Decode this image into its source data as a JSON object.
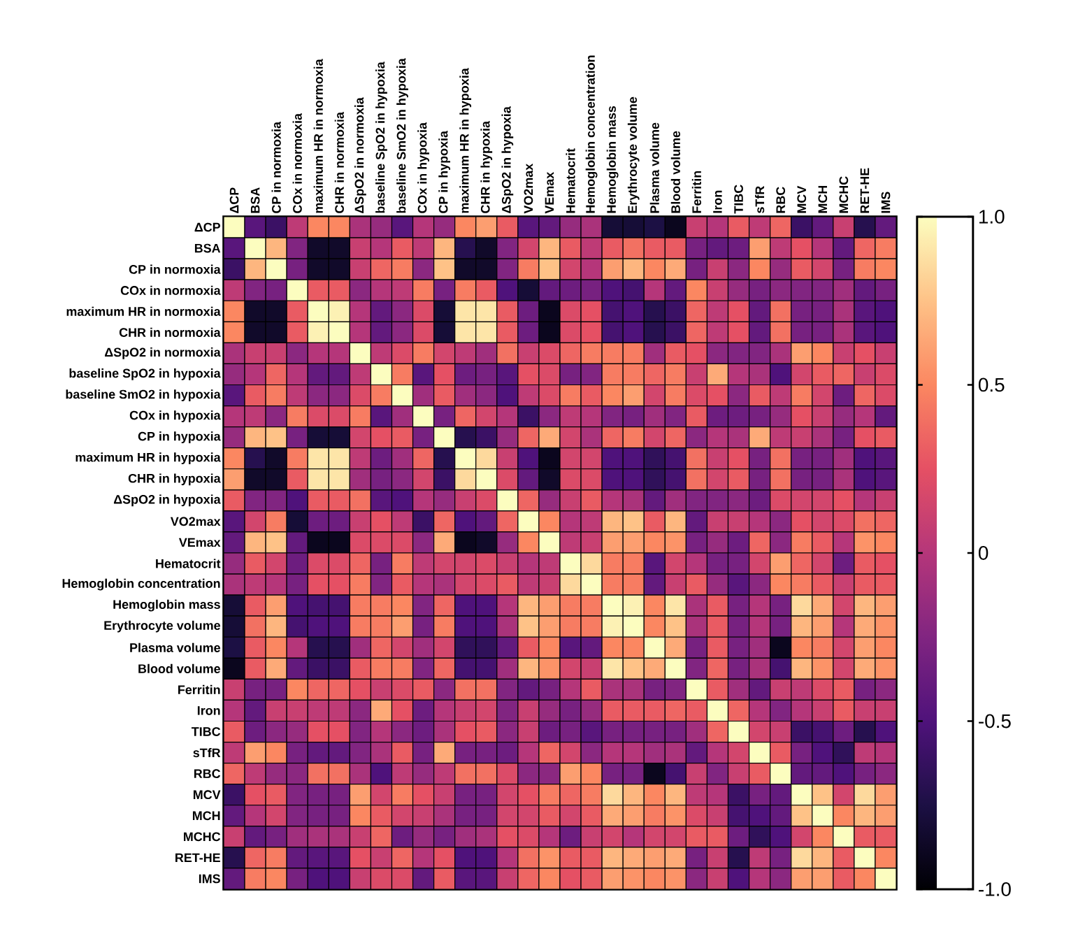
{
  "chart_data": {
    "type": "heatmap",
    "categories": [
      "ΔCP",
      "BSA",
      "CP in normoxia",
      "COx in normoxia",
      "maximum HR in normoxia",
      "CHR in normoxia",
      "ΔSpO2 in normoxia",
      "baseline SpO2 in hypoxia",
      "baseline SmO2 in hypoxia",
      "COx in hypoxia",
      "CP in hypoxia",
      "maximum HR in hypoxia",
      "CHR in hypoxia",
      "ΔSpO2 in hypoxia",
      "VO2max",
      "VEmax",
      "Hematocrit",
      "Hemoglobin concentration",
      "Hemoglobin mass",
      "Erythrocyte volume",
      "Plasma volume",
      "Blood volume",
      "Ferritin",
      "Iron",
      "TIBC",
      "sTfR",
      "RBC",
      "MCV",
      "MCH",
      "MCHC",
      "RET-HE",
      "IMS"
    ],
    "y_categories": [
      "ΔCP",
      "BSA",
      "CP in normoxia",
      "COx in normoxia",
      "maximum HR in normoxia",
      "CHR in normoxia",
      "ΔSpO2 in normoxia",
      "baseline SpO2 in hypoxia",
      "baseline SmO2 in hypoxia",
      "COx in hypoxia",
      "CP in hypoxia",
      "maximum HR in hypoxia",
      "CHR in hypoxia",
      "ΔSpO2 in hypoxia",
      "VO2max",
      "VEmax",
      "Hematocrit",
      "Hemoglobin concentration",
      "Hemoglobin mass",
      "Erythrocyte volume",
      "Plasma volume",
      "Blood volume",
      "Ferritin",
      "Iron",
      "TIBC",
      "sTfR",
      "RBC",
      "MCV",
      "MCH",
      "MCHC",
      "RET-HE",
      "IMS"
    ],
    "cells": [
      [
        1,
        -0.45,
        -0.6,
        0.05,
        0.5,
        0.5,
        -0.05,
        -0.15,
        -0.45,
        0,
        -0.15,
        0.5,
        0.6,
        0.3,
        -0.45,
        -0.4,
        -0.15,
        -0.05,
        -0.8,
        -0.8,
        -0.75,
        -0.9,
        0.1,
        0,
        0.3,
        0.05,
        0.35,
        -0.6,
        -0.4,
        0.1,
        -0.7,
        -0.4
      ],
      [
        -0.45,
        1,
        0.7,
        -0.25,
        -0.85,
        -0.85,
        0.1,
        0,
        0.3,
        0.05,
        0.7,
        -0.7,
        -0.85,
        -0.25,
        0.15,
        0.7,
        0.3,
        0.05,
        0.3,
        0.4,
        0.3,
        0.3,
        -0.3,
        -0.4,
        -0.35,
        0.6,
        0.05,
        0.25,
        0,
        -0.4,
        0.35,
        0.45
      ],
      [
        -0.6,
        0.7,
        1,
        -0.3,
        -0.85,
        -0.85,
        0.1,
        0.35,
        0.45,
        -0.2,
        0.75,
        -0.85,
        -0.85,
        -0.25,
        0.45,
        0.75,
        0.15,
        0,
        0.6,
        0.7,
        0.5,
        0.65,
        -0.3,
        0.1,
        -0.2,
        0.5,
        -0.15,
        0.3,
        0.15,
        -0.3,
        0.45,
        0.5
      ],
      [
        0.05,
        -0.25,
        -0.3,
        1,
        0.3,
        0.3,
        -0.2,
        0,
        0.05,
        0.45,
        -0.3,
        0.45,
        0.3,
        -0.5,
        -0.8,
        -0.4,
        -0.35,
        -0.3,
        -0.5,
        -0.55,
        0,
        -0.4,
        0.5,
        0.1,
        -0.15,
        -0.3,
        -0.2,
        -0.25,
        -0.25,
        -0.1,
        -0.4,
        -0.3
      ],
      [
        0.5,
        -0.85,
        -0.85,
        0.3,
        1,
        0.95,
        0,
        -0.4,
        -0.2,
        0.2,
        -0.8,
        0.9,
        0.9,
        0.3,
        -0.35,
        -0.9,
        0.2,
        0.25,
        -0.55,
        -0.5,
        -0.7,
        -0.6,
        0.35,
        0.05,
        0.25,
        -0.4,
        0.4,
        -0.3,
        -0.3,
        -0.05,
        -0.45,
        -0.5
      ],
      [
        0.5,
        -0.85,
        -0.85,
        0.3,
        0.95,
        1,
        0,
        -0.4,
        -0.2,
        0.2,
        -0.8,
        0.9,
        0.9,
        0.3,
        -0.35,
        -0.9,
        0.2,
        0.25,
        -0.55,
        -0.5,
        -0.7,
        -0.6,
        0.35,
        0.05,
        0.25,
        -0.4,
        0.4,
        -0.3,
        -0.3,
        -0.05,
        -0.45,
        -0.5
      ],
      [
        -0.05,
        0.1,
        0.1,
        -0.2,
        0,
        0,
        1,
        0.05,
        0.2,
        0.45,
        0.15,
        0.05,
        -0.1,
        0.4,
        0.1,
        0.2,
        0.35,
        0.45,
        0.45,
        0.45,
        -0.1,
        0.3,
        0.25,
        -0.2,
        -0.25,
        -0.25,
        -0.05,
        0.6,
        0.5,
        0.1,
        0.25,
        0.1
      ],
      [
        -0.15,
        0,
        0.35,
        0,
        -0.4,
        -0.4,
        0.05,
        1,
        0.45,
        -0.45,
        0.25,
        -0.35,
        -0.3,
        -0.45,
        0.25,
        0.2,
        -0.3,
        -0.25,
        0.45,
        0.45,
        0.35,
        0.45,
        0.1,
        0.65,
        0,
        -0.05,
        -0.5,
        0.15,
        0.3,
        0.35,
        0.1,
        0.2
      ],
      [
        -0.45,
        0.3,
        0.45,
        0.05,
        -0.2,
        -0.2,
        0.2,
        0.45,
        1,
        -0.1,
        0.3,
        -0.1,
        -0.2,
        -0.5,
        0.05,
        0.2,
        0.45,
        0.3,
        0.5,
        0.6,
        0.15,
        0.45,
        0.2,
        0.25,
        -0.2,
        0.3,
        0.05,
        0.45,
        0.15,
        -0.35,
        0.35,
        0.2
      ],
      [
        0,
        0.05,
        -0.2,
        0.45,
        0.2,
        0.2,
        0.45,
        -0.45,
        -0.1,
        1,
        -0.3,
        0.35,
        0.15,
        0,
        -0.6,
        -0.2,
        0.05,
        0,
        -0.25,
        -0.3,
        -0.1,
        -0.25,
        0.3,
        -0.35,
        -0.35,
        -0.3,
        -0.15,
        0.25,
        0.1,
        -0.15,
        0,
        -0.4
      ],
      [
        -0.15,
        0.7,
        0.75,
        -0.3,
        -0.8,
        -0.8,
        0.15,
        0.25,
        0.3,
        -0.3,
        1,
        -0.7,
        -0.6,
        -0.15,
        0.35,
        0.65,
        0.15,
        -0.05,
        0.35,
        0.45,
        0.15,
        0.35,
        -0.2,
        0,
        -0.05,
        0.65,
        0.05,
        0.1,
        -0.05,
        -0.3,
        0.25,
        0.3
      ],
      [
        0.5,
        -0.7,
        -0.85,
        0.45,
        0.9,
        0.9,
        0.05,
        -0.35,
        -0.1,
        0.35,
        -0.7,
        1,
        0.85,
        0.1,
        -0.5,
        -0.9,
        0.15,
        0.15,
        -0.5,
        -0.5,
        -0.65,
        -0.55,
        0.4,
        0.1,
        0.25,
        -0.3,
        0.4,
        -0.3,
        -0.3,
        -0.1,
        -0.5,
        -0.45
      ],
      [
        0.6,
        -0.85,
        -0.85,
        0.3,
        0.9,
        0.9,
        -0.1,
        -0.3,
        -0.2,
        0.15,
        -0.6,
        0.85,
        1,
        0.2,
        -0.4,
        -0.85,
        0.2,
        0.2,
        -0.5,
        -0.5,
        -0.65,
        -0.55,
        0.4,
        0.15,
        0.3,
        -0.3,
        0.4,
        -0.3,
        -0.3,
        -0.05,
        -0.5,
        -0.45
      ],
      [
        0.3,
        -0.25,
        -0.25,
        -0.5,
        0.3,
        0.3,
        0.4,
        -0.45,
        -0.5,
        0,
        -0.15,
        0.1,
        0.2,
        1,
        0.35,
        -0.15,
        0.1,
        0.3,
        0,
        -0.05,
        -0.4,
        -0.1,
        -0.25,
        -0.25,
        -0.2,
        -0.35,
        0.2,
        0.15,
        0.15,
        0.25,
        0,
        0.1
      ],
      [
        -0.45,
        0.15,
        0.45,
        -0.8,
        -0.35,
        -0.35,
        0.1,
        0.25,
        0.05,
        -0.6,
        0.35,
        -0.5,
        -0.4,
        0.35,
        1,
        0.5,
        0,
        0.05,
        0.7,
        0.75,
        0.3,
        0.7,
        -0.4,
        0.1,
        0.1,
        0,
        -0.2,
        0.25,
        0.15,
        0.2,
        0.4,
        0.35
      ],
      [
        -0.4,
        0.7,
        0.75,
        -0.4,
        -0.9,
        -0.9,
        0.2,
        0.2,
        0.2,
        -0.2,
        0.65,
        -0.9,
        -0.85,
        -0.15,
        0.5,
        1,
        0.05,
        0.1,
        0.6,
        0.6,
        0.5,
        0.55,
        -0.3,
        -0.15,
        -0.35,
        0.35,
        -0.2,
        0.45,
        0.3,
        0,
        0.55,
        0.5
      ],
      [
        -0.15,
        0.3,
        0.15,
        -0.35,
        0.2,
        0.2,
        0.35,
        -0.3,
        0.45,
        0.05,
        0.15,
        0.15,
        0.2,
        0.1,
        0,
        0.05,
        1,
        0.85,
        0.45,
        0.45,
        -0.45,
        0.15,
        0,
        -0.3,
        -0.3,
        0.15,
        0.6,
        0.35,
        0.15,
        -0.35,
        0.3,
        0.25
      ],
      [
        -0.05,
        0.05,
        0,
        -0.3,
        0.25,
        0.25,
        0.45,
        -0.25,
        0.3,
        0,
        -0.05,
        0.15,
        0.2,
        0.3,
        0.05,
        0.1,
        0.85,
        1,
        0.45,
        0.45,
        -0.4,
        0.1,
        0.3,
        -0.15,
        -0.45,
        -0.2,
        0.5,
        0.45,
        0.3,
        0.1,
        0.3,
        0.3
      ],
      [
        -0.8,
        0.3,
        0.6,
        -0.5,
        -0.55,
        -0.55,
        0.45,
        0.45,
        0.5,
        -0.25,
        0.35,
        -0.5,
        -0.5,
        0,
        0.7,
        0.6,
        0.45,
        0.45,
        1,
        0.95,
        0.5,
        0.9,
        -0.05,
        0.3,
        -0.3,
        0,
        -0.3,
        0.85,
        0.65,
        0.15,
        0.7,
        0.6
      ],
      [
        -0.8,
        0.4,
        0.7,
        -0.55,
        -0.5,
        -0.5,
        0.45,
        0.45,
        0.6,
        -0.3,
        0.45,
        -0.5,
        -0.5,
        -0.05,
        0.75,
        0.6,
        0.45,
        0.45,
        0.95,
        1,
        0.5,
        0.75,
        -0.05,
        0.3,
        -0.3,
        0,
        -0.3,
        0.7,
        0.6,
        0,
        0.65,
        0.55
      ],
      [
        -0.75,
        0.3,
        0.5,
        0,
        -0.7,
        -0.7,
        -0.1,
        0.35,
        0.15,
        -0.1,
        0.15,
        -0.65,
        -0.65,
        -0.4,
        0.3,
        0.5,
        -0.45,
        -0.4,
        0.5,
        0.5,
        1,
        0.65,
        -0.3,
        0.3,
        -0.3,
        -0.1,
        -0.9,
        0.5,
        0.45,
        0.15,
        0.6,
        0.5
      ],
      [
        -0.9,
        0.3,
        0.65,
        -0.4,
        -0.6,
        -0.6,
        0.3,
        0.45,
        0.45,
        -0.25,
        0.35,
        -0.55,
        -0.55,
        -0.1,
        0.7,
        0.55,
        0.15,
        0.1,
        0.9,
        0.75,
        0.65,
        1,
        -0.25,
        0.35,
        -0.3,
        -0.05,
        -0.55,
        0.7,
        0.55,
        0.15,
        0.65,
        0.55
      ],
      [
        0.1,
        -0.3,
        -0.3,
        0.5,
        0.35,
        0.35,
        0.25,
        0.1,
        0.2,
        0.3,
        -0.2,
        0.4,
        0.4,
        -0.25,
        -0.4,
        -0.3,
        0,
        0.3,
        -0.05,
        -0.05,
        -0.3,
        -0.25,
        1,
        0.3,
        -0.1,
        -0.4,
        0.1,
        0.05,
        0.2,
        0.3,
        -0.3,
        -0.2
      ],
      [
        0,
        -0.4,
        0.1,
        0.1,
        0.05,
        0.05,
        -0.2,
        0.65,
        0.25,
        -0.35,
        0,
        0.1,
        0.15,
        -0.25,
        0.1,
        -0.15,
        -0.3,
        -0.15,
        0.3,
        0.3,
        0.3,
        0.35,
        0.3,
        1,
        0.35,
        0,
        -0.25,
        0,
        0.1,
        0.3,
        0.1,
        0.1
      ],
      [
        0.3,
        -0.35,
        -0.2,
        -0.15,
        0.25,
        0.25,
        -0.25,
        0,
        -0.2,
        -0.35,
        -0.05,
        0.25,
        0.3,
        -0.2,
        0.1,
        -0.35,
        -0.3,
        -0.45,
        -0.3,
        -0.3,
        -0.3,
        -0.3,
        -0.1,
        0.35,
        1,
        0.15,
        0.1,
        -0.6,
        -0.55,
        -0.35,
        -0.7,
        -0.5
      ],
      [
        0.05,
        0.6,
        0.5,
        -0.3,
        -0.4,
        -0.4,
        -0.25,
        -0.05,
        0.3,
        -0.3,
        0.65,
        -0.3,
        -0.3,
        -0.35,
        0,
        0.35,
        0.15,
        -0.2,
        0,
        0,
        -0.1,
        -0.05,
        -0.4,
        0,
        0.15,
        1,
        0.3,
        -0.3,
        -0.5,
        -0.65,
        0.05,
        0
      ],
      [
        0.35,
        0.05,
        -0.15,
        -0.2,
        0.4,
        0.4,
        -0.05,
        -0.5,
        0.05,
        -0.15,
        0.05,
        0.4,
        0.4,
        0.2,
        -0.2,
        -0.2,
        0.6,
        0.5,
        -0.3,
        -0.3,
        -0.9,
        -0.55,
        0.1,
        -0.25,
        0.1,
        0.3,
        1,
        -0.4,
        -0.4,
        -0.5,
        -0.3,
        -0.2
      ],
      [
        -0.6,
        0.25,
        0.3,
        -0.25,
        -0.3,
        -0.3,
        0.6,
        0.15,
        0.45,
        0.25,
        0.1,
        -0.3,
        -0.3,
        0.15,
        0.25,
        0.45,
        0.35,
        0.45,
        0.85,
        0.7,
        0.5,
        0.7,
        0.05,
        0,
        -0.6,
        -0.3,
        -0.4,
        1,
        0.75,
        0.15,
        0.85,
        0.6
      ],
      [
        -0.4,
        0,
        0.15,
        -0.25,
        -0.3,
        -0.3,
        0.5,
        0.3,
        0.15,
        0.1,
        -0.05,
        -0.3,
        -0.3,
        0.15,
        0.15,
        0.3,
        0.15,
        0.3,
        0.65,
        0.6,
        0.45,
        0.55,
        0.2,
        0.1,
        -0.55,
        -0.5,
        -0.4,
        0.75,
        1,
        0.5,
        0.7,
        0.6
      ],
      [
        0.1,
        -0.4,
        -0.3,
        -0.1,
        -0.05,
        -0.05,
        0.1,
        0.35,
        -0.35,
        -0.15,
        -0.3,
        -0.1,
        -0.05,
        0.25,
        0.2,
        0,
        -0.35,
        0.1,
        0.15,
        0,
        0.15,
        0.15,
        0.3,
        0.3,
        -0.35,
        -0.65,
        -0.5,
        0.15,
        0.5,
        1,
        0.3,
        0.3
      ],
      [
        -0.7,
        0.35,
        0.45,
        -0.4,
        -0.45,
        -0.45,
        0.25,
        0.1,
        0.35,
        0,
        0.25,
        -0.5,
        -0.5,
        0,
        0.4,
        0.55,
        0.3,
        0.3,
        0.7,
        0.65,
        0.6,
        0.65,
        -0.3,
        0.1,
        -0.7,
        0.05,
        -0.3,
        0.85,
        0.7,
        0.3,
        1,
        0.5
      ],
      [
        -0.4,
        0.45,
        0.5,
        -0.3,
        -0.5,
        -0.5,
        0.1,
        0.2,
        0.2,
        -0.4,
        0.3,
        -0.45,
        -0.45,
        0.1,
        0.35,
        0.5,
        0.25,
        0.3,
        0.6,
        0.55,
        0.5,
        0.55,
        -0.2,
        0.1,
        -0.5,
        0,
        -0.2,
        0.6,
        0.6,
        0.3,
        0.5,
        1
      ]
    ],
    "clim": [
      -1,
      1
    ],
    "cticks": [
      {
        "value": -1,
        "label": "-1.0"
      },
      {
        "value": -0.5,
        "label": "-0.5"
      },
      0,
      0.5,
      {
        "value": 1,
        "label": "1.0"
      }
    ]
  }
}
